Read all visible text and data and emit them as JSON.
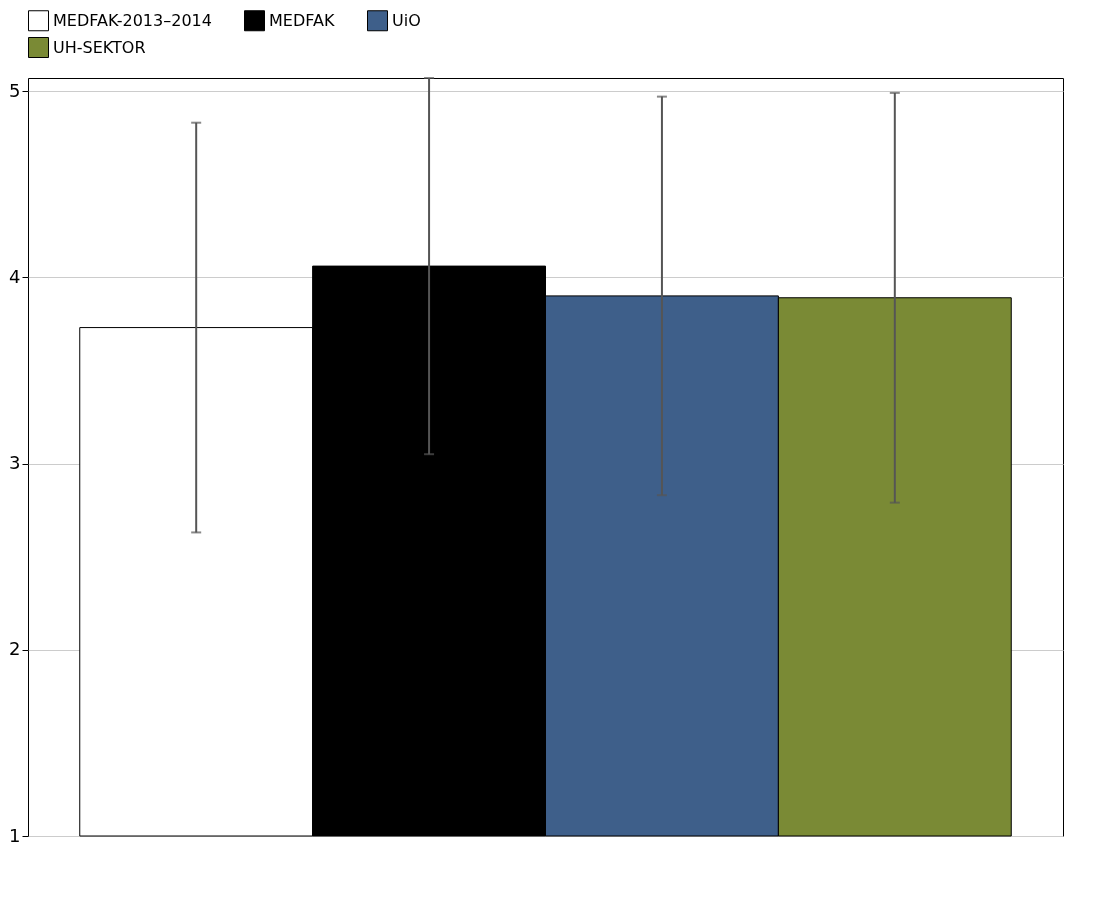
{
  "chart_data": {
    "type": "bar",
    "categories": [
      null
    ],
    "series": [
      {
        "name": "MEDFAK-2013–2014",
        "color": "#ffffff",
        "values": [
          3.73
        ],
        "errors": [
          1.1
        ]
      },
      {
        "name": "MEDFAK",
        "color": "#000000",
        "values": [
          4.06
        ],
        "errors": [
          1.01
        ]
      },
      {
        "name": "UiO",
        "color": "#3e5f8a",
        "values": [
          3.9
        ],
        "errors": [
          1.07
        ]
      },
      {
        "name": "UH-SEKTOR",
        "color": "#7a8a35",
        "values": [
          3.89
        ],
        "errors": [
          1.1
        ]
      }
    ],
    "ylim": [
      1,
      5.07
    ],
    "yticks": [
      1,
      2,
      3,
      4,
      5
    ],
    "grid": "y",
    "legend": "top left",
    "tick_labels": "y"
  }
}
